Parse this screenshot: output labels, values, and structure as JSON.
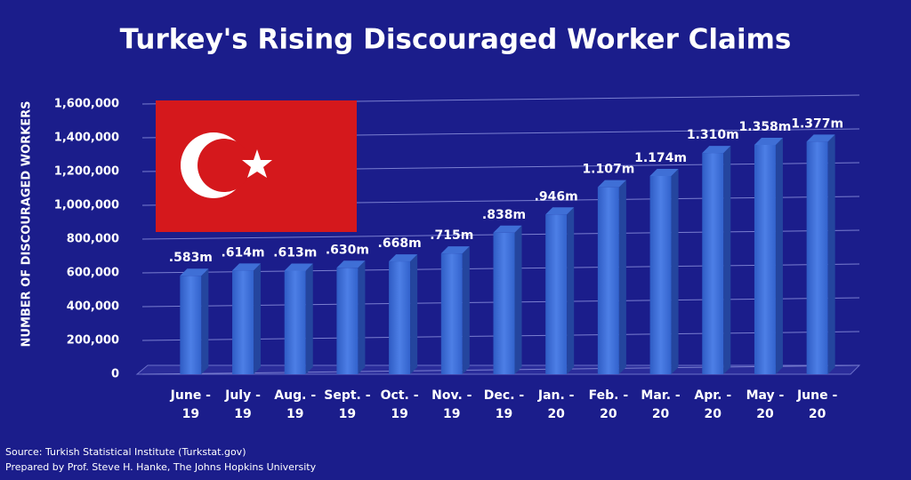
{
  "chart_data": {
    "type": "bar",
    "title": "Turkey's Rising Discouraged Worker Claims",
    "y_label": "NUMBER OF DISCOURAGED WORKERS",
    "categories": [
      "June -\n19",
      "July -\n19",
      "Aug. -\n19",
      "Sept. -\n19",
      "Oct. -\n19",
      "Nov. -\n19",
      "Dec. -\n19",
      "Jan. -\n20",
      "Feb. -\n20",
      "Mar. -\n20",
      "Apr. -\n20",
      "May -\n20",
      "June -\n20"
    ],
    "values": [
      583000,
      614000,
      613000,
      630000,
      668000,
      715000,
      838000,
      946000,
      1107000,
      1174000,
      1310000,
      1358000,
      1377000
    ],
    "value_labels": [
      ".583m",
      ".614m",
      ".613m",
      ".630m",
      ".668m",
      ".715m",
      ".838m",
      ".946m",
      "1.107m",
      "1.174m",
      "1.310m",
      "1.358m",
      "1.377m"
    ],
    "color": "#3f6fd6",
    "ylim": [
      0,
      1600000
    ],
    "yticks": [
      0,
      {
        "value": 200000,
        "label": "200,000"
      },
      {
        "value": 400000,
        "label": "400,000"
      },
      {
        "value": 600000,
        "label": "600,000"
      },
      {
        "value": 800000,
        "label": "800,000"
      },
      {
        "value": 1000000,
        "label": "1,000,000"
      },
      {
        "value": 1200000,
        "label": "1,200,000"
      },
      {
        "value": 1400000,
        "label": "1,400,000"
      },
      {
        "value": 1600000,
        "label": "1,600,000"
      }
    ],
    "grid": true,
    "sources": [
      "Source: Turkish Statistical Institute (Turkstat.gov)",
      "Prepared by Prof. Steve H. Hanke, The Johns Hopkins University"
    ]
  }
}
